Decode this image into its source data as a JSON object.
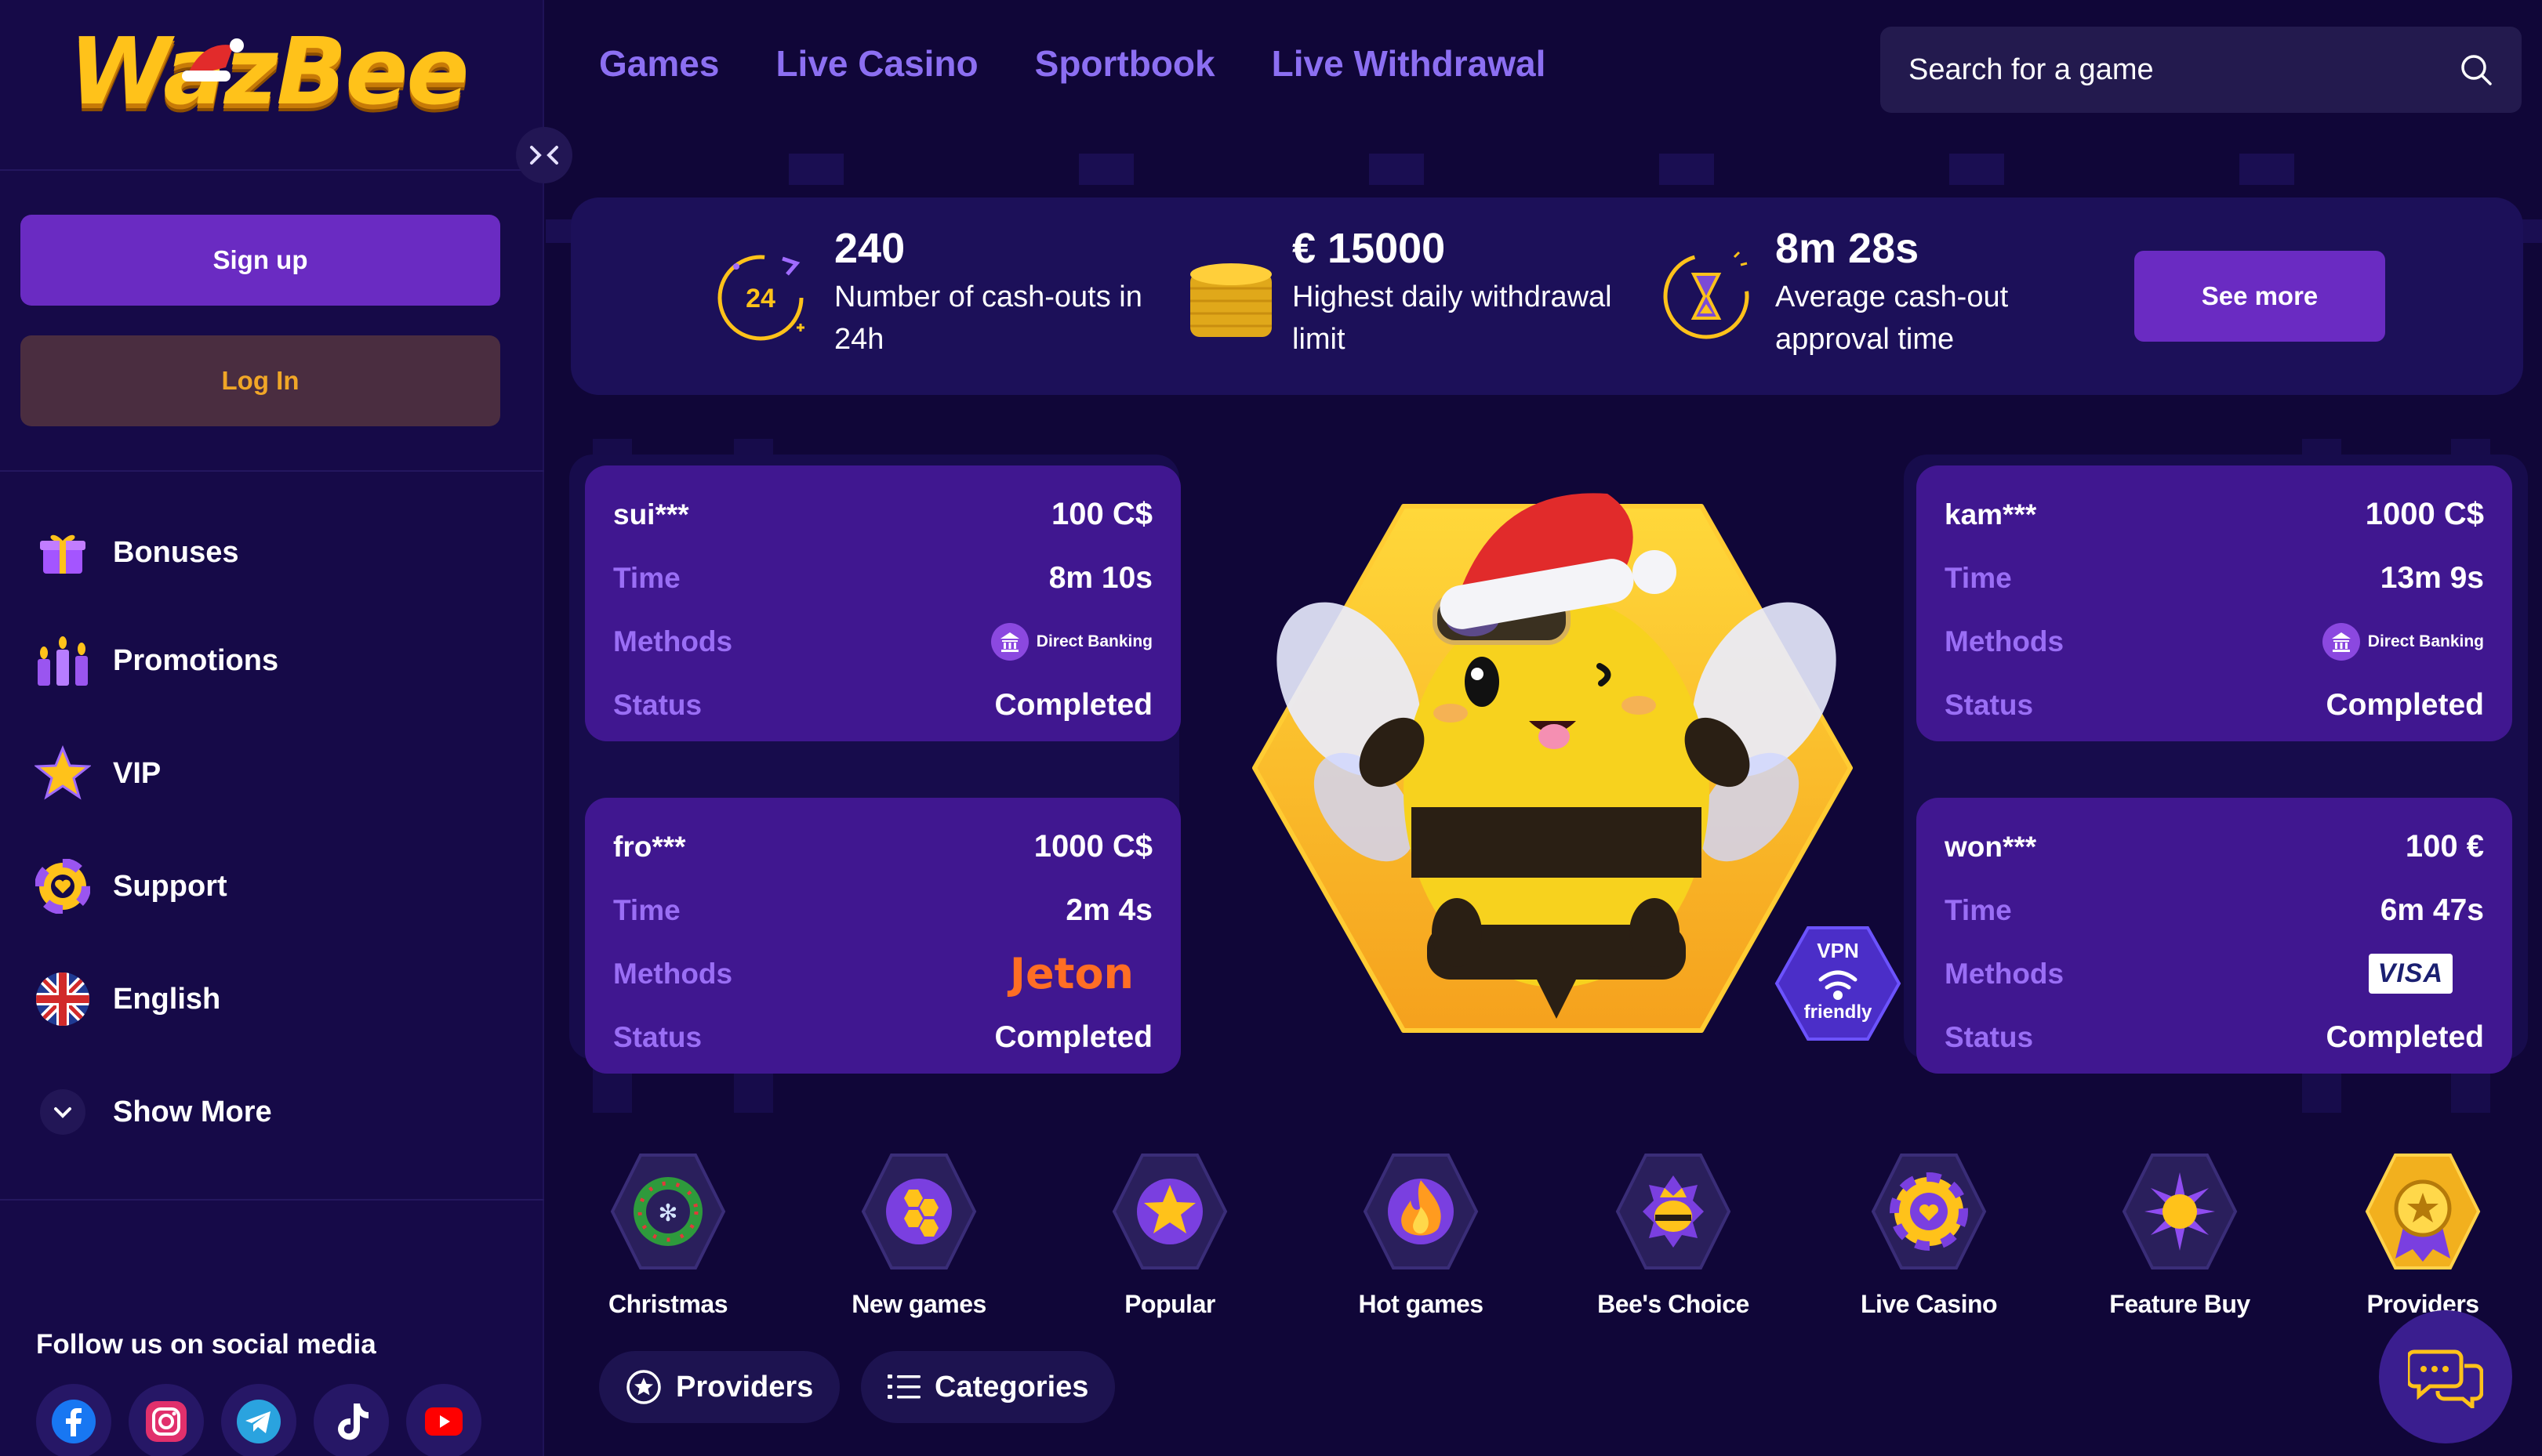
{
  "brand": {
    "logo_text": "WazBee"
  },
  "topnav": [
    "Games",
    "Live Casino",
    "Sportbook",
    "Live Withdrawal"
  ],
  "search": {
    "placeholder": "Search for a game"
  },
  "sidebar": {
    "signup_label": "Sign up",
    "login_label": "Log In",
    "items": [
      {
        "label": "Bonuses",
        "icon": "gift-icon"
      },
      {
        "label": "Promotions",
        "icon": "candles-icon"
      },
      {
        "label": "VIP",
        "icon": "star-icon"
      },
      {
        "label": "Support",
        "icon": "lifebuoy-heart-icon"
      },
      {
        "label": "English",
        "icon": "uk-flag-icon"
      },
      {
        "label": "Show More",
        "icon": "chevron-down-icon"
      }
    ],
    "social_title": "Follow us on social media",
    "social": [
      "facebook-icon",
      "instagram-icon",
      "telegram-icon",
      "tiktok-icon",
      "youtube-icon"
    ]
  },
  "stats": [
    {
      "value": "240",
      "desc": "Number of cash-outs in 24h",
      "icon": "clock-24-icon"
    },
    {
      "value": "€ 15000",
      "desc": "Highest daily withdrawal limit",
      "icon": "coins-stack-icon"
    },
    {
      "value": "8m 28s",
      "desc": "Average cash-out approval time",
      "icon": "hourglass-icon"
    }
  ],
  "see_more_label": "See more",
  "labels": {
    "time": "Time",
    "methods": "Methods",
    "status": "Status"
  },
  "cards": [
    {
      "user": "sui***",
      "amount": "100 C$",
      "time": "8m 10s",
      "method": "Direct Banking",
      "status": "Completed"
    },
    {
      "user": "fro***",
      "amount": "1000 C$",
      "time": "2m 4s",
      "method": "Jeton",
      "status": "Completed"
    },
    {
      "user": "kam***",
      "amount": "1000 C$",
      "time": "13m 9s",
      "method": "Direct Banking",
      "status": "Completed"
    },
    {
      "user": "won***",
      "amount": "100 €",
      "time": "6m 47s",
      "method": "VISA",
      "status": "Completed"
    }
  ],
  "vpn_badge": {
    "line1": "VPN",
    "line2": "friendly"
  },
  "categories": [
    {
      "label": "Christmas",
      "icon": "wreath-icon"
    },
    {
      "label": "New games",
      "icon": "honeycomb-icon"
    },
    {
      "label": "Popular",
      "icon": "star-icon"
    },
    {
      "label": "Hot games",
      "icon": "flame-icon"
    },
    {
      "label": "Bee's Choice",
      "icon": "bee-crown-icon"
    },
    {
      "label": "Live Casino",
      "icon": "casino-chip-icon"
    },
    {
      "label": "Feature Buy",
      "icon": "sparkle-orb-icon"
    },
    {
      "label": "Providers",
      "icon": "award-badge-icon"
    }
  ],
  "pills": [
    {
      "label": "Providers",
      "icon": "star-circle-icon"
    },
    {
      "label": "Categories",
      "icon": "list-icon"
    }
  ],
  "colors": {
    "bg": "#100638",
    "sidebar": "#160a48",
    "accent_purple": "#6a2bc2",
    "nav_link": "#8c6ff2",
    "card": "#401790",
    "card_label": "#9a6ef5",
    "gold": "#ffc21a"
  }
}
